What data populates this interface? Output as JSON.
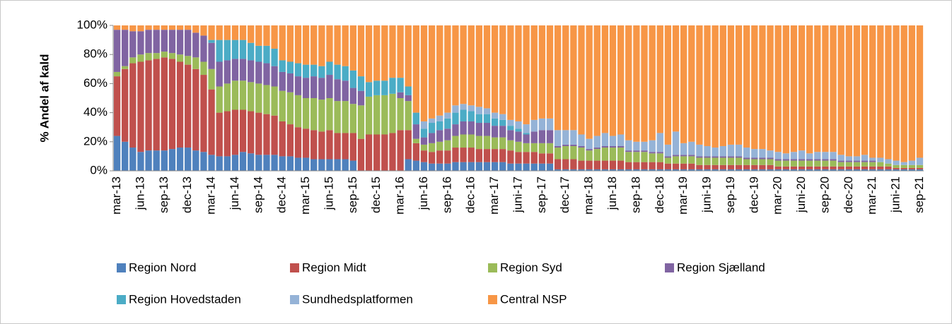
{
  "chart_data": {
    "type": "stacked_bar",
    "y_label": "% Andel af kald",
    "ylim": [
      0,
      100
    ],
    "yticks": [
      {
        "value": 0,
        "label": "0%"
      },
      {
        "value": 20,
        "label": "20%"
      },
      {
        "value": 40,
        "label": "40%"
      },
      {
        "value": 60,
        "label": "60%"
      },
      {
        "value": 80,
        "label": "80%"
      },
      {
        "value": 100,
        "label": "100%"
      }
    ],
    "categories": [
      "mar-13",
      null,
      null,
      "jun-13",
      null,
      null,
      "sep-13",
      null,
      null,
      "dec-13",
      null,
      null,
      "mar-14",
      null,
      null,
      "jun-14",
      null,
      null,
      "sep-14",
      null,
      null,
      "dec-14",
      null,
      null,
      "mar-15",
      null,
      null,
      "jun-15",
      null,
      null,
      "sep-15",
      null,
      null,
      "dec-15",
      null,
      null,
      "mar-16",
      null,
      null,
      "jun-16",
      null,
      null,
      "sep-16",
      null,
      null,
      "dec-16",
      null,
      null,
      "mar-17",
      null,
      null,
      "juni-17",
      null,
      null,
      "sep-17",
      null,
      null,
      "dec-17",
      null,
      null,
      "mar-18",
      null,
      null,
      "jun-18",
      null,
      null,
      "sep-18",
      null,
      null,
      "dec-18",
      null,
      null,
      "mar-19",
      null,
      null,
      "juni-19",
      null,
      null,
      "sep-19",
      null,
      null,
      "dec-19",
      null,
      null,
      "mar-20",
      null,
      null,
      "juni-20",
      null,
      null,
      "sep-20",
      null,
      null,
      "dec-20",
      null,
      null,
      "mar-21",
      null,
      null,
      "juni-21",
      null,
      null,
      "sep-21"
    ],
    "series": [
      {
        "name": "Region Nord",
        "color": "#4f81bd",
        "values": [
          24,
          20,
          16,
          13,
          14,
          14,
          14,
          15,
          16,
          16,
          14,
          13,
          11,
          10,
          10,
          11,
          13,
          12,
          11,
          11,
          11,
          10,
          10,
          9,
          9,
          8,
          8,
          8,
          8,
          8,
          7,
          0,
          0,
          0,
          0,
          0,
          0,
          8,
          7,
          6,
          5,
          5,
          5,
          6,
          6,
          6,
          6,
          6,
          6,
          6,
          5,
          5,
          5,
          5,
          5,
          5,
          1,
          1,
          1,
          1,
          1,
          1,
          1,
          1,
          1,
          1,
          1,
          1,
          1,
          1,
          1,
          1,
          1,
          1,
          1,
          1,
          1,
          1,
          1,
          1,
          1,
          1,
          1,
          1,
          1,
          1,
          1,
          1,
          1,
          1,
          1,
          1,
          1,
          1,
          1,
          1,
          1,
          1,
          1,
          1,
          1,
          1,
          1
        ]
      },
      {
        "name": "Region Midt",
        "color": "#c0504d",
        "values": [
          41,
          50,
          58,
          62,
          62,
          63,
          64,
          62,
          59,
          57,
          56,
          53,
          45,
          30,
          31,
          31,
          29,
          29,
          29,
          28,
          27,
          24,
          22,
          21,
          20,
          20,
          19,
          20,
          18,
          18,
          19,
          22,
          25,
          25,
          25,
          26,
          28,
          20,
          12,
          8,
          8,
          9,
          9,
          10,
          10,
          10,
          9,
          9,
          9,
          9,
          9,
          8,
          8,
          8,
          7,
          7,
          7,
          7,
          7,
          6,
          6,
          6,
          6,
          6,
          6,
          5,
          5,
          5,
          5,
          5,
          4,
          4,
          4,
          4,
          3,
          3,
          3,
          3,
          3,
          3,
          3,
          3,
          3,
          3,
          2,
          2,
          2,
          2,
          2,
          2,
          2,
          2,
          2,
          2,
          2,
          2,
          2,
          2,
          2,
          1,
          1,
          1,
          1
        ]
      },
      {
        "name": "Region Syd",
        "color": "#9bbb59",
        "values": [
          3,
          2,
          4,
          5,
          5,
          4,
          4,
          4,
          5,
          6,
          8,
          9,
          14,
          18,
          19,
          20,
          20,
          20,
          20,
          20,
          20,
          21,
          22,
          22,
          21,
          22,
          22,
          22,
          22,
          22,
          20,
          23,
          26,
          27,
          27,
          27,
          22,
          20,
          3,
          4,
          6,
          6,
          7,
          8,
          9,
          9,
          9,
          9,
          8,
          8,
          7,
          7,
          6,
          6,
          7,
          7,
          8,
          9,
          9,
          9,
          7,
          8,
          9,
          9,
          9,
          7,
          7,
          7,
          6,
          6,
          4,
          5,
          5,
          5,
          5,
          5,
          5,
          5,
          5,
          5,
          4,
          4,
          4,
          4,
          4,
          4,
          4,
          4,
          4,
          4,
          4,
          4,
          3,
          3,
          3,
          3,
          3,
          3,
          2,
          2,
          2,
          2,
          2
        ]
      },
      {
        "name": "Region Sjælland",
        "color": "#8064a2",
        "values": [
          29,
          25,
          18,
          16,
          16,
          16,
          15,
          16,
          17,
          18,
          17,
          18,
          18,
          17,
          16,
          15,
          15,
          15,
          15,
          15,
          14,
          13,
          13,
          13,
          14,
          15,
          15,
          16,
          15,
          14,
          11,
          10,
          0,
          0,
          0,
          0,
          4,
          4,
          10,
          5,
          7,
          8,
          8,
          8,
          9,
          9,
          9,
          9,
          8,
          8,
          7,
          7,
          6,
          8,
          9,
          9,
          1,
          1,
          1,
          1,
          1,
          1,
          1,
          1,
          1,
          1,
          1,
          1,
          1,
          1,
          1,
          1,
          1,
          1,
          1,
          1,
          1,
          1,
          1,
          1,
          1,
          1,
          1,
          1,
          1,
          1,
          1,
          1,
          1,
          1,
          1,
          1,
          1,
          1,
          1,
          1,
          1,
          0,
          0,
          0,
          0,
          0,
          0
        ]
      },
      {
        "name": "Region Hovedstaden",
        "color": "#4bacc6",
        "values": [
          0,
          0,
          0,
          0,
          0,
          0,
          0,
          0,
          0,
          0,
          0,
          0,
          2,
          15,
          14,
          13,
          13,
          12,
          11,
          12,
          12,
          8,
          8,
          9,
          9,
          8,
          8,
          9,
          10,
          10,
          12,
          10,
          10,
          10,
          10,
          11,
          10,
          6,
          8,
          6,
          7,
          6,
          7,
          8,
          8,
          7,
          6,
          6,
          5,
          4,
          3,
          2,
          1,
          0,
          0,
          0,
          0,
          0,
          0,
          0,
          0,
          0,
          0,
          0,
          0,
          0,
          0,
          0,
          0,
          0,
          0,
          0,
          0,
          0,
          0,
          0,
          0,
          0,
          0,
          0,
          0,
          0,
          0,
          0,
          0,
          0,
          0,
          0,
          0,
          0,
          0,
          0,
          0,
          0,
          0,
          0,
          0,
          0,
          0,
          0,
          0,
          0,
          0
        ]
      },
      {
        "name": "Sundhedsplatformen",
        "color": "#95b3d7",
        "values": [
          0,
          0,
          0,
          0,
          0,
          0,
          0,
          0,
          0,
          0,
          0,
          0,
          0,
          0,
          0,
          0,
          0,
          0,
          0,
          0,
          0,
          0,
          0,
          0,
          0,
          0,
          0,
          0,
          0,
          0,
          0,
          0,
          0,
          0,
          0,
          0,
          0,
          0,
          0,
          5,
          3,
          4,
          4,
          5,
          4,
          4,
          5,
          4,
          4,
          4,
          4,
          5,
          6,
          8,
          8,
          8,
          11,
          10,
          10,
          8,
          7,
          8,
          9,
          7,
          8,
          7,
          6,
          6,
          8,
          13,
          8,
          16,
          8,
          9,
          8,
          7,
          6,
          7,
          8,
          8,
          7,
          6,
          6,
          5,
          5,
          4,
          5,
          6,
          4,
          5,
          5,
          5,
          4,
          3,
          3,
          4,
          2,
          3,
          3,
          3,
          2,
          3,
          5
        ]
      },
      {
        "name": "Central NSP",
        "color": "#f79646",
        "values": [
          3,
          3,
          4,
          4,
          3,
          3,
          3,
          3,
          3,
          3,
          5,
          7,
          10,
          10,
          10,
          10,
          10,
          12,
          14,
          14,
          16,
          24,
          25,
          26,
          27,
          27,
          28,
          25,
          27,
          28,
          31,
          35,
          39,
          38,
          38,
          36,
          36,
          42,
          60,
          66,
          64,
          62,
          60,
          55,
          54,
          55,
          56,
          57,
          60,
          61,
          65,
          66,
          68,
          65,
          64,
          64,
          72,
          72,
          72,
          75,
          78,
          76,
          74,
          76,
          75,
          79,
          80,
          80,
          79,
          74,
          82,
          73,
          81,
          80,
          82,
          83,
          84,
          83,
          82,
          82,
          84,
          85,
          85,
          86,
          87,
          88,
          87,
          86,
          88,
          87,
          87,
          87,
          89,
          90,
          90,
          89,
          91,
          91,
          92,
          93,
          94,
          93,
          91
        ]
      }
    ]
  }
}
